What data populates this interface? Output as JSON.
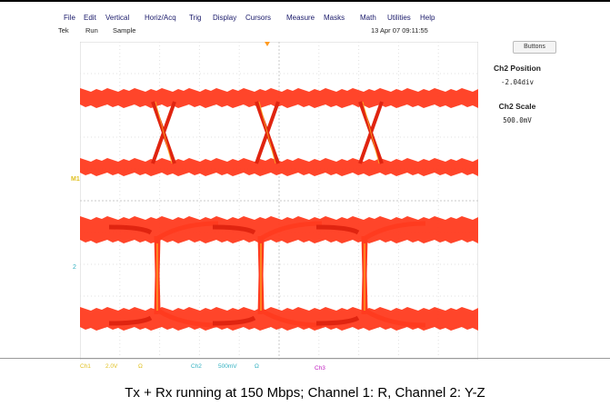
{
  "menu": [
    {
      "label": "File"
    },
    {
      "label": "Edit"
    },
    {
      "label": "Vertical"
    },
    {
      "label": "Horiz/Acq"
    },
    {
      "label": "Trig"
    },
    {
      "label": "Display"
    },
    {
      "label": "Cursors"
    },
    {
      "label": "Measure"
    },
    {
      "label": "Masks"
    },
    {
      "label": "Math"
    },
    {
      "label": "Utilities"
    },
    {
      "label": "Help"
    }
  ],
  "status": {
    "brand": "Tek",
    "run_state": "Run",
    "acq_mode": "Sample",
    "timestamp": "13 Apr 07 09:11:55"
  },
  "side_panel": {
    "buttons_label": "Buttons",
    "ch2_position_label": "Ch2 Position",
    "ch2_position_value": "-2.04div",
    "ch2_scale_label": "Ch2 Scale",
    "ch2_scale_value": "500.0mV"
  },
  "markers": {
    "ch2_ground": "2",
    "ch1_ground": "M1"
  },
  "readouts": {
    "ch1_label": "Ch1",
    "ch1_scale": "2.0V",
    "ch1_coupling": "Ω",
    "ch2_label": "Ch2",
    "ch2_scale": "500mV",
    "ch2_coupling": "Ω",
    "ch3_label": "Ch3"
  },
  "caption": "Tx + Rx running at 150 Mbps; Channel 1: R, Channel 2: Y-Z",
  "colors": {
    "trace": "#ff3b1f",
    "trace_dark": "#e02410",
    "trace_yellow": "#ffb020",
    "ch1_readout": "#e0c020",
    "ch2_readout": "#30b0c0",
    "ch3_readout": "#c020c0"
  }
}
